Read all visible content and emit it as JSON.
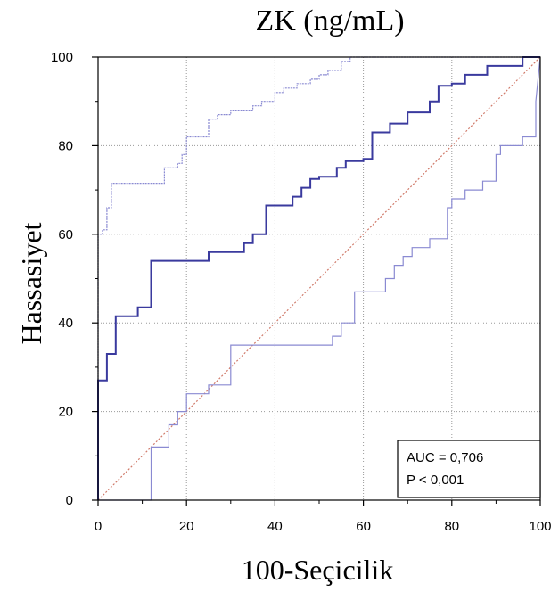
{
  "chart_data": {
    "type": "line",
    "title": "ZK (ng/mL)",
    "xlabel": "100-Seçicilik",
    "ylabel": "Hassasiyet",
    "xlim": [
      0,
      100
    ],
    "ylim": [
      0,
      100
    ],
    "xticks": [
      0,
      20,
      40,
      60,
      80,
      100
    ],
    "yticks": [
      0,
      20,
      40,
      60,
      80,
      100
    ],
    "grid": true,
    "legend_box": {
      "position": "bottom-right",
      "lines": [
        "AUC = 0,706",
        "P < 0,001"
      ]
    },
    "series": [
      {
        "role": "roc-curve",
        "color": "#3a3a9e",
        "x": [
          0,
          0,
          2,
          2,
          4,
          4,
          9,
          9,
          12,
          12,
          25,
          25,
          33,
          33,
          35,
          35,
          38,
          38,
          44,
          44,
          46,
          46,
          48,
          48,
          50,
          50,
          54,
          54,
          56,
          56,
          60,
          60,
          62,
          62,
          66,
          66,
          70,
          70,
          75,
          75,
          77,
          77,
          80,
          80,
          83,
          83,
          88,
          88,
          96,
          96,
          100
        ],
        "y": [
          0,
          27,
          27,
          33,
          33,
          41.5,
          41.5,
          43.5,
          43.5,
          54,
          54,
          56,
          56,
          58,
          58,
          60,
          60,
          66.5,
          66.5,
          68.5,
          68.5,
          70.5,
          70.5,
          72.5,
          72.5,
          73,
          73,
          75,
          75,
          76.5,
          76.5,
          77,
          77,
          83,
          83,
          85,
          85,
          87.5,
          87.5,
          90,
          90,
          93.5,
          93.5,
          94,
          94,
          96,
          96,
          98,
          98,
          100,
          100
        ]
      },
      {
        "role": "upper-confidence-bound",
        "color": "#8a8ad2",
        "x": [
          0,
          0,
          1,
          1,
          2,
          2,
          3,
          3,
          15,
          15,
          18,
          18,
          19,
          19,
          20,
          20,
          25,
          25,
          27,
          27,
          30,
          30,
          35,
          35,
          37,
          37,
          40,
          40,
          42,
          42,
          45,
          45,
          48,
          48,
          50,
          50,
          52,
          52,
          55,
          55,
          57,
          57,
          100
        ],
        "y": [
          0,
          60,
          60,
          61,
          61,
          66,
          66,
          71.5,
          71.5,
          75,
          75,
          76,
          76,
          78,
          78,
          82,
          82,
          86,
          86,
          87,
          87,
          88,
          88,
          89,
          89,
          90,
          90,
          92,
          92,
          93,
          93,
          94,
          94,
          95,
          95,
          96,
          96,
          97,
          97,
          99,
          99,
          100,
          100
        ]
      },
      {
        "role": "lower-confidence-bound",
        "color": "#8a8ad2",
        "x": [
          0,
          12,
          12,
          16,
          16,
          18,
          18,
          20,
          20,
          25,
          25,
          30,
          30,
          53,
          53,
          55,
          55,
          58,
          58,
          65,
          65,
          67,
          67,
          69,
          69,
          71,
          71,
          75,
          75,
          79,
          79,
          80,
          80,
          83,
          83,
          87,
          87,
          90,
          90,
          91,
          91,
          96,
          96,
          99,
          99,
          100
        ],
        "y": [
          0,
          0,
          12,
          12,
          17,
          17,
          20,
          20,
          24,
          24,
          26,
          26,
          35,
          35,
          37,
          37,
          40,
          40,
          47,
          47,
          50,
          50,
          53,
          53,
          55,
          55,
          57,
          57,
          59,
          59,
          66,
          66,
          68,
          68,
          70,
          70,
          72,
          72,
          78,
          78,
          80,
          80,
          82,
          82,
          90,
          100
        ]
      },
      {
        "role": "reference-diagonal",
        "color": "#d07a6a",
        "x": [
          0,
          100
        ],
        "y": [
          0,
          100
        ]
      }
    ]
  }
}
